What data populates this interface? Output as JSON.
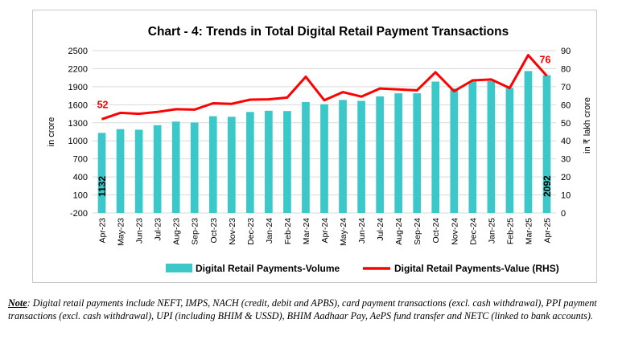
{
  "chart_data": {
    "type": "bar+line",
    "title": "Chart - 4: Trends in Total Digital Retail Payment Transactions",
    "categories": [
      "Apr-23",
      "May-23",
      "Jun-23",
      "Jul-23",
      "Aug-23",
      "Sep-23",
      "Oct-23",
      "Nov-23",
      "Dec-23",
      "Jan-24",
      "Feb-24",
      "Mar-24",
      "Apr-24",
      "May-24",
      "Jun-24",
      "Jul-24",
      "Aug-24",
      "Sep-24",
      "Oct-24",
      "Nov-24",
      "Dec-24",
      "Jan-25",
      "Feb-25",
      "Mar-25",
      "Apr-25"
    ],
    "series": [
      {
        "name": "Digital Retail Payments-Volume",
        "type": "bar",
        "axis": "left",
        "color": "#3cc8c8",
        "values": [
          1132,
          1195,
          1185,
          1260,
          1320,
          1305,
          1410,
          1400,
          1480,
          1500,
          1495,
          1645,
          1610,
          1680,
          1665,
          1740,
          1790,
          1790,
          1985,
          1870,
          1990,
          1995,
          1880,
          2160,
          2092
        ]
      },
      {
        "name": "Digital Retail Payments-Value (RHS)",
        "type": "line",
        "axis": "right",
        "color": "#ff0000",
        "values": [
          52,
          55.5,
          55,
          56,
          57.5,
          57.3,
          60.8,
          60.5,
          62.8,
          63,
          64,
          75.5,
          62.5,
          67,
          64.5,
          69,
          68.5,
          68,
          78,
          67.5,
          73.5,
          74,
          69.3,
          87.5,
          76
        ]
      }
    ],
    "y_left": {
      "label": "in crore",
      "lim": [
        -200,
        2500
      ],
      "ticks": [
        -200,
        100,
        400,
        700,
        1000,
        1300,
        1600,
        1900,
        2200,
        2500
      ]
    },
    "y_right": {
      "label": "in ₹ lakh crore",
      "lim": [
        0,
        90
      ],
      "ticks": [
        0,
        10,
        20,
        30,
        40,
        50,
        60,
        70,
        80,
        90
      ]
    },
    "bar_labels": {
      "first": "1132",
      "last": "2092"
    },
    "line_labels": {
      "first": "52",
      "last": "76"
    },
    "legend": "bottom",
    "grid": true
  },
  "note": {
    "label": "Note",
    "text": ": Digital retail payments include NEFT, IMPS, NACH (credit, debit and APBS), card payment transactions (excl. cash withdrawal), PPI payment transactions (excl. cash withdrawal), UPI (including BHIM & USSD), BHIM Aadhaar Pay, AePS fund transfer and NETC (linked to bank accounts)."
  },
  "colors": {
    "bar": "#3cc8c8",
    "line": "#ff0000",
    "grid": "#d9d9d9"
  }
}
